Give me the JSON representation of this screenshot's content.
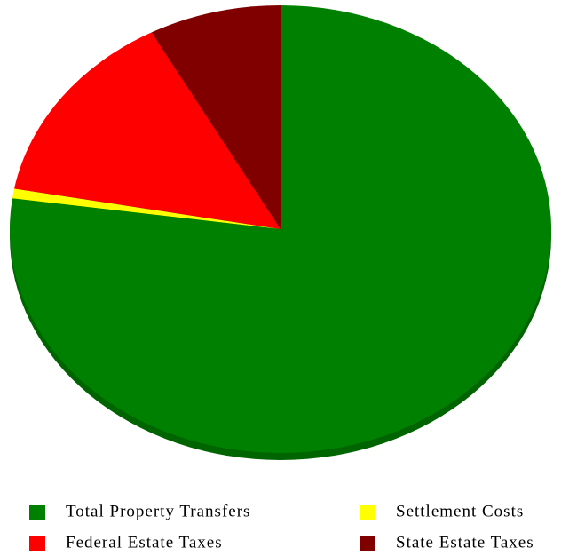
{
  "chart_data": {
    "type": "pie",
    "categories": [
      "Total Property Transfers",
      "Settlement Costs",
      "Federal Estate Taxes",
      "State Estate Taxes"
    ],
    "values": [
      77.2,
      0.7,
      14.2,
      7.9
    ],
    "colors": [
      "#008000",
      "#ffff00",
      "#ff0000",
      "#800000"
    ],
    "legend": "bottom"
  }
}
